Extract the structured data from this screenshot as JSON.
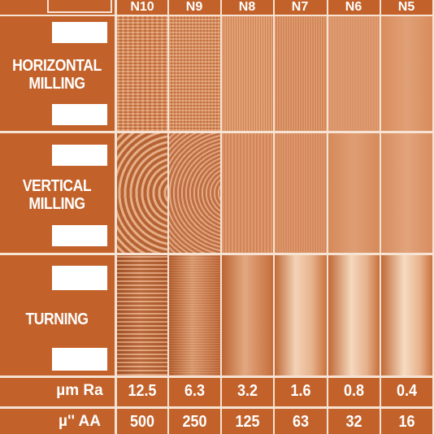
{
  "grades": [
    "N10",
    "N9",
    "N8",
    "N7",
    "N6",
    "N5"
  ],
  "rows": [
    {
      "label": "HORIZONTAL\nMILLING"
    },
    {
      "label": "VERTICAL\nMILLING"
    },
    {
      "label": "TURNING"
    }
  ],
  "units": {
    "ra": "µm Ra",
    "aa": "µ'' AA"
  },
  "ra_values": [
    "12.5",
    "6.3",
    "3.2",
    "1.6",
    "0.8",
    "0.4"
  ],
  "aa_values": [
    "500",
    "250",
    "125",
    "63",
    "32",
    "16"
  ],
  "colors": {
    "background": "#c2622a",
    "grid": "#f7e3d3",
    "text": "#ffffff"
  }
}
